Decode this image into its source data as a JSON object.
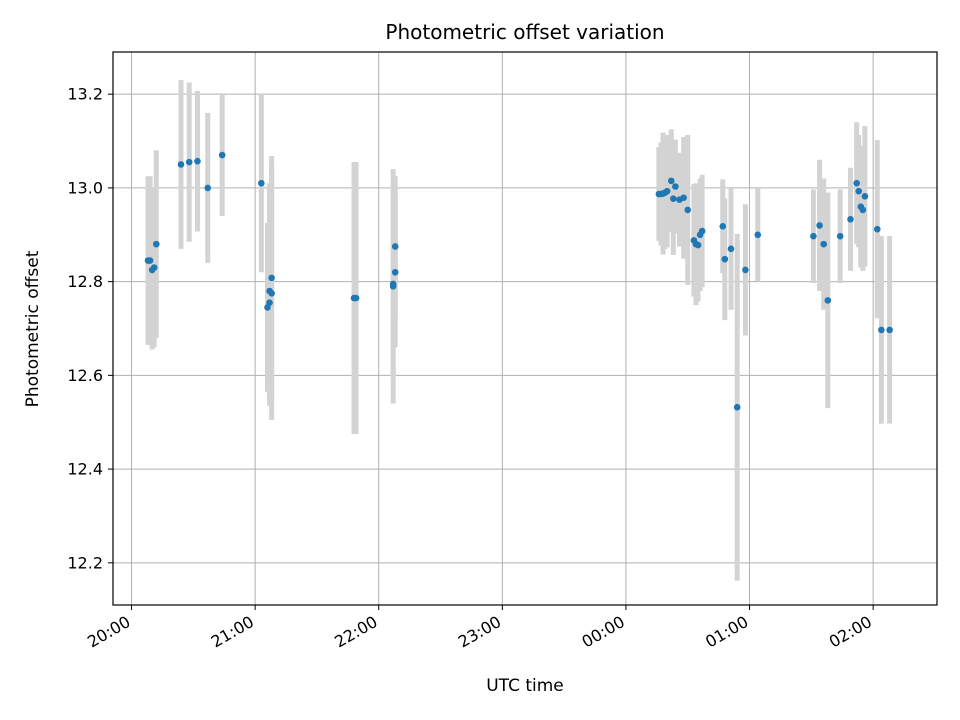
{
  "chart_data": {
    "type": "scatter",
    "title": "Photometric offset variation",
    "xlabel": "UTC time",
    "ylabel": "Photometric offset",
    "grid": true,
    "colors": {
      "points": "#1f77b4",
      "errorbars": "#d3d3d3",
      "grid": "#b0b0b0"
    },
    "x_ticks": [
      "20:00",
      "21:00",
      "22:00",
      "23:00",
      "00:00",
      "01:00",
      "02:00"
    ],
    "y_ticks": [
      "12.2",
      "12.4",
      "12.6",
      "12.8",
      "13.0",
      "13.2"
    ],
    "xlim": [
      "19:51",
      "02:31"
    ],
    "ylim": [
      12.11,
      13.29
    ],
    "series": [
      {
        "x": [
          "20:08",
          "20:09",
          "20:10",
          "20:11",
          "20:12",
          "20:24",
          "20:28",
          "20:32",
          "20:37",
          "20:44",
          "21:03",
          "21:06",
          "21:07",
          "21:07",
          "21:08",
          "21:08",
          "21:48",
          "21:49",
          "22:07",
          "22:07",
          "22:08",
          "22:08",
          "00:16",
          "00:17",
          "00:18",
          "00:19",
          "00:20",
          "00:22",
          "00:23",
          "00:24",
          "00:26",
          "00:28",
          "00:30",
          "00:33",
          "00:34",
          "00:35",
          "00:36",
          "00:37",
          "00:47",
          "00:48",
          "00:51",
          "00:54",
          "00:58",
          "01:04",
          "01:31",
          "01:34",
          "01:36",
          "01:38",
          "01:44",
          "01:49",
          "01:52",
          "01:53",
          "01:54",
          "01:55",
          "01:56",
          "02:02",
          "02:04",
          "02:08"
        ],
        "y": [
          12.845,
          12.845,
          12.825,
          12.83,
          12.88,
          13.05,
          13.055,
          13.057,
          13.0,
          13.07,
          13.01,
          12.745,
          12.755,
          12.78,
          12.775,
          12.808,
          12.765,
          12.765,
          12.79,
          12.795,
          12.82,
          12.875,
          12.987,
          12.987,
          12.988,
          12.99,
          12.993,
          13.015,
          12.977,
          13.003,
          12.975,
          12.979,
          12.953,
          12.888,
          12.88,
          12.878,
          12.9,
          12.908,
          12.918,
          12.848,
          12.87,
          12.532,
          12.825,
          12.9,
          12.897,
          12.92,
          12.88,
          12.76,
          12.897,
          12.933,
          13.01,
          12.993,
          12.96,
          12.953,
          12.982,
          12.912,
          12.697,
          12.697
        ],
        "err": [
          0.18,
          0.18,
          0.17,
          0.17,
          0.2,
          0.18,
          0.17,
          0.15,
          0.16,
          0.13,
          0.19,
          0.18,
          0.22,
          0.23,
          0.27,
          0.26,
          0.29,
          0.29,
          0.25,
          0.2,
          0.16,
          0.15,
          0.1,
          0.11,
          0.13,
          0.12,
          0.12,
          0.11,
          0.12,
          0.1,
          0.1,
          0.13,
          0.16,
          0.12,
          0.13,
          0.12,
          0.12,
          0.12,
          0.1,
          0.13,
          0.13,
          0.37,
          0.14,
          0.1,
          0.1,
          0.14,
          0.14,
          0.23,
          0.1,
          0.11,
          0.13,
          0.12,
          0.13,
          0.13,
          0.15,
          0.19,
          0.2,
          0.2
        ]
      }
    ]
  }
}
